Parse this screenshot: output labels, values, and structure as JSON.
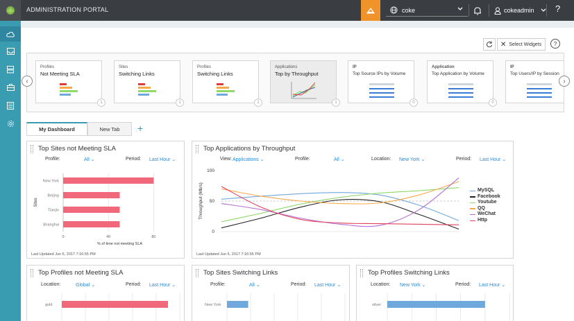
{
  "topbar": {
    "title": "ADMINISTRATION PORTAL",
    "site_value": "coke",
    "user_name": "cokeadmin",
    "help_label": "?"
  },
  "sidebar": {
    "items": [
      {
        "icon": "cloud-icon",
        "active": true
      },
      {
        "icon": "inbox-icon"
      },
      {
        "icon": "server-icon"
      },
      {
        "icon": "toolbox-icon"
      },
      {
        "icon": "report-icon"
      },
      {
        "icon": "gear-icon"
      }
    ]
  },
  "toolbar": {
    "select_widgets_label": "Select Widgets"
  },
  "widgets": [
    {
      "l1": "Profiles",
      "l2": "Not Meeting SLA",
      "icon": "bar-thumb-icon",
      "num": "1"
    },
    {
      "l1": "Sites",
      "l2": "Switching Links",
      "icon": "bar-thumb-icon",
      "num": "1"
    },
    {
      "l1": "Profiles",
      "l2": "Switching Links",
      "icon": "bar-thumb-icon",
      "num": "1"
    },
    {
      "l1": "Applications",
      "l2": "Top by Throughput",
      "icon": "line-thumb-icon",
      "num": "1"
    },
    {
      "l1": "IP",
      "l2": "Top Source IPs by Volume",
      "icon": "table-thumb-icon",
      "num": "0"
    },
    {
      "l1": "Application",
      "l2": "Top Application by Volume",
      "icon": "table-thumb-icon",
      "num": "0"
    },
    {
      "l1": "IP",
      "l2": "Top Users/IP by Session",
      "icon": "table-thumb-icon",
      "num": ""
    }
  ],
  "tabs": {
    "active": "My Dashboard",
    "other": "New Tab",
    "add": "+"
  },
  "panels": {
    "p1": {
      "title": "Top Sites not Meeting SLA",
      "profile_label": "Profile:",
      "profile_value": "All",
      "period_label": "Period:",
      "period_value": "Last Hour",
      "updated": "Last Updated Jun 6, 2017 7:16:55 PM"
    },
    "p2": {
      "title": "Top Applications by Throughput",
      "view_label": "View:",
      "view_value": "Applications",
      "profile_label": "Profile:",
      "profile_value": "All",
      "location_label": "Location:",
      "location_value": "New York",
      "period_label": "Period:",
      "period_value": "Last Hour",
      "updated": "Last Updated Jun 6, 2017 7:16:55 PM"
    },
    "p3": {
      "title": "Top Profiles not Meeting SLA",
      "location_label": "Location:",
      "location_value": "Global",
      "period_label": "Period:",
      "period_value": "Last Hour"
    },
    "p4": {
      "title": "Top Sites Switching Links",
      "profile_label": "Profile:",
      "profile_value": "All",
      "period_label": "Period:",
      "period_value": "Last Hour"
    },
    "p5": {
      "title": "Top Profiles Switching Links",
      "location_label": "Location:",
      "location_value": "New York",
      "period_label": "Period:",
      "period_value": "Last Hour"
    }
  },
  "chart_data": [
    {
      "type": "bar",
      "orientation": "horizontal",
      "categories": [
        "New York",
        "Beijing",
        "Tianjin",
        "Shanghai"
      ],
      "values": [
        80,
        50,
        50,
        50
      ],
      "xlabel": "% of time not meeting SLA",
      "ylabel": "Sites",
      "xlim": [
        0,
        100
      ],
      "xticks": [
        0,
        40,
        80
      ],
      "color": "#f0687a"
    },
    {
      "type": "line",
      "ylabel": "Throughput (Mb/s)",
      "ylim": [
        0,
        100
      ],
      "yticks": [
        0,
        50,
        100
      ],
      "x": [
        0,
        1,
        2,
        3,
        4,
        5,
        6
      ],
      "legend_position": "right",
      "series": [
        {
          "name": "MySQL",
          "color": "#6fa8dc",
          "values": [
            53,
            58,
            62,
            64,
            60,
            43,
            18
          ]
        },
        {
          "name": "Facebook",
          "color": "#222222",
          "values": [
            6,
            22,
            40,
            52,
            49,
            28,
            4
          ]
        },
        {
          "name": "Youtube",
          "color": "#8fd86a",
          "values": [
            16,
            30,
            45,
            56,
            63,
            67,
            72
          ]
        },
        {
          "name": "QQ",
          "color": "#f7a94a",
          "values": [
            70,
            58,
            50,
            46,
            47,
            60,
            82
          ]
        },
        {
          "name": "WeChat",
          "color": "#b56ed4",
          "values": [
            46,
            36,
            22,
            12,
            10,
            36,
            88
          ]
        },
        {
          "name": "Http",
          "color": "#e0405a",
          "values": [
            74,
            40,
            20,
            14,
            13,
            12,
            11
          ]
        }
      ]
    },
    {
      "type": "bar",
      "orientation": "horizontal",
      "categories": [
        "gold"
      ],
      "values": [
        90
      ],
      "color": "#f0687a"
    },
    {
      "type": "bar",
      "orientation": "horizontal",
      "categories": [
        "New York"
      ],
      "values": [
        18
      ],
      "color": "#6fa8dc"
    },
    {
      "type": "bar",
      "orientation": "horizontal",
      "categories": [
        "silver"
      ],
      "values": [
        80
      ],
      "color": "#6fa8dc"
    }
  ]
}
